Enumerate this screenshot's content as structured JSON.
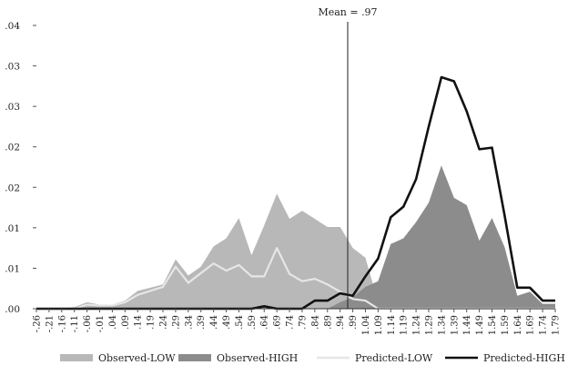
{
  "chart_data": {
    "type": "area",
    "x": [
      "-.26",
      "-.21",
      "-.16",
      "-.11",
      "-.06",
      "-.01",
      ".04",
      ".09",
      ".14",
      ".19",
      ".24",
      ".29",
      ".34",
      ".39",
      ".44",
      ".49",
      ".54",
      ".59",
      ".64",
      ".69",
      ".74",
      ".79",
      ".84",
      ".89",
      ".94",
      ".99",
      "1.04",
      "1.09",
      "1.14",
      "1.19",
      "1.24",
      "1.29",
      "1.34",
      "1.39",
      "1.44",
      "1.49",
      "1.54",
      "1.59",
      "1.64",
      "1.69",
      "1.74",
      "1.79"
    ],
    "y_tick_labels": [
      ".00",
      ".01",
      ".01",
      ".02",
      ".02",
      ".03",
      ".03",
      ".04"
    ],
    "ylim": [
      0,
      0.035
    ],
    "annotation": {
      "label": "Mean = .97",
      "x": 0.97
    },
    "series": [
      {
        "name": "Observed-LOW",
        "kind": "area",
        "color": "#b8b8b8",
        "values": [
          0.0001,
          0,
          0,
          0.0002,
          0.0008,
          0.0005,
          0.0005,
          0.001,
          0.0022,
          0.0026,
          0.003,
          0.0061,
          0.0041,
          0.0052,
          0.0077,
          0.0087,
          0.0112,
          0.0066,
          0.0103,
          0.0142,
          0.0111,
          0.0121,
          0.0111,
          0.0101,
          0.0101,
          0.0075,
          0.0063,
          0.0008,
          0,
          0,
          0,
          0,
          0,
          0,
          0,
          0,
          0,
          0,
          0,
          0,
          0,
          0
        ]
      },
      {
        "name": "Observed-HIGH",
        "kind": "area",
        "color": "#8c8c8c",
        "values": [
          0,
          0,
          0,
          0,
          0,
          0,
          0,
          0,
          0,
          0,
          0,
          0,
          0,
          0,
          0,
          0,
          0,
          0,
          0,
          0,
          0,
          0,
          0,
          0,
          0.0008,
          0.0014,
          0.0027,
          0.0034,
          0.008,
          0.0087,
          0.0107,
          0.0131,
          0.0177,
          0.0137,
          0.0128,
          0.0084,
          0.0112,
          0.0076,
          0.0016,
          0.0021,
          0.0006,
          0.0006
        ]
      },
      {
        "name": "Predicted-LOW",
        "kind": "line",
        "color": "#e6e6e6",
        "values": [
          0,
          0,
          0,
          0,
          0.0005,
          0.0004,
          0.0004,
          0.0008,
          0.0017,
          0.0022,
          0.0027,
          0.0052,
          0.0032,
          0.0044,
          0.0056,
          0.0047,
          0.0054,
          0.004,
          0.004,
          0.0075,
          0.0043,
          0.0034,
          0.0037,
          0.003,
          0.0021,
          0.0012,
          0.001,
          0,
          0,
          0,
          0,
          0,
          0,
          0,
          0,
          0,
          0,
          0,
          0,
          0,
          0,
          0
        ]
      },
      {
        "name": "Predicted-HIGH",
        "kind": "line",
        "color": "#111111",
        "values": [
          0,
          0,
          0,
          0,
          0,
          0,
          0,
          0,
          0,
          0,
          0,
          0,
          0,
          0,
          0,
          0,
          0,
          0,
          0.0003,
          0,
          0,
          0,
          0.001,
          0.001,
          0.0019,
          0.0016,
          0.004,
          0.0062,
          0.0113,
          0.0126,
          0.016,
          0.0225,
          0.0286,
          0.0281,
          0.0244,
          0.0197,
          0.0199,
          0.0115,
          0.0026,
          0.0026,
          0.001,
          0.001
        ]
      }
    ],
    "legend": {
      "position": "bottom",
      "items": [
        {
          "label": "Observed-LOW",
          "color": "#b8b8b8",
          "kind": "area"
        },
        {
          "label": "Observed-HIGH",
          "color": "#8c8c8c",
          "kind": "area"
        },
        {
          "label": "Predicted-LOW",
          "color": "#e6e6e6",
          "kind": "line"
        },
        {
          "label": "Predicted-HIGH",
          "color": "#111111",
          "kind": "line"
        }
      ]
    },
    "grid": false
  }
}
